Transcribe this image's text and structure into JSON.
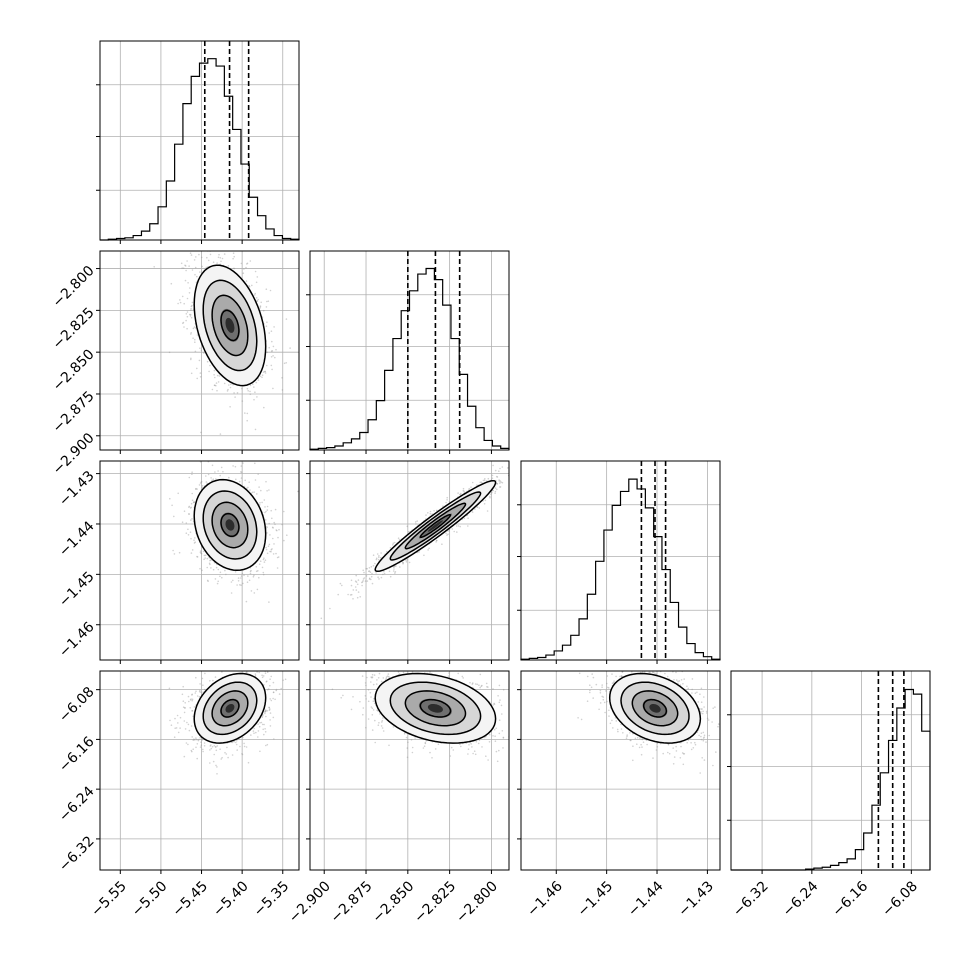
{
  "chart_data": {
    "type": "corner",
    "parameters": [
      {
        "id": "p1",
        "range": [
          -5.575,
          -5.33
        ],
        "ticks": [
          -5.55,
          -5.5,
          -5.45,
          -5.4,
          -5.35
        ],
        "tick_labels": [
          "−5.55",
          "−5.50",
          "−5.45",
          "−5.40",
          "−5.35"
        ],
        "quantiles": [
          -5.446,
          -5.4155,
          -5.392
        ]
      },
      {
        "id": "p2",
        "range": [
          -2.9085,
          -2.7895
        ],
        "ticks": [
          -2.9,
          -2.875,
          -2.85,
          -2.825,
          -2.8
        ],
        "tick_labels": [
          "−2.900",
          "−2.875",
          "−2.850",
          "−2.825",
          "−2.800"
        ],
        "quantiles": [
          -2.85,
          -2.8335,
          -2.819
        ]
      },
      {
        "id": "p3",
        "range": [
          -1.467,
          -1.4275
        ],
        "ticks": [
          -1.46,
          -1.45,
          -1.44,
          -1.43
        ],
        "tick_labels": [
          "−1.46",
          "−1.45",
          "−1.44",
          "−1.43"
        ],
        "quantiles": [
          -1.4431,
          -1.4404,
          -1.4383
        ]
      },
      {
        "id": "p4",
        "range": [
          -6.37,
          -6.05
        ],
        "ticks": [
          -6.32,
          -6.24,
          -6.16,
          -6.08
        ],
        "tick_labels": [
          "−6.32",
          "−6.24",
          "−6.16",
          "−6.08"
        ],
        "quantiles": [
          -6.133,
          -6.11,
          -6.092
        ]
      }
    ],
    "histograms": [
      {
        "param": "p1",
        "values": [
          0,
          1,
          2,
          3,
          6,
          12,
          22,
          45,
          80,
          130,
          185,
          222,
          240,
          246,
          236,
          195,
          150,
          103,
          58,
          33,
          15,
          6,
          2,
          1
        ],
        "ylim": [
          0,
          270
        ]
      },
      {
        "param": "p2",
        "values": [
          1,
          2,
          3,
          5,
          9,
          14,
          22,
          38,
          62,
          100,
          140,
          175,
          200,
          221,
          228,
          214,
          182,
          140,
          95,
          55,
          28,
          12,
          5,
          2
        ],
        "ylim": [
          0,
          250
        ]
      },
      {
        "param": "p3",
        "values": [
          1,
          2,
          3,
          6,
          11,
          18,
          30,
          50,
          80,
          120,
          158,
          188,
          205,
          220,
          208,
          185,
          150,
          110,
          70,
          40,
          20,
          9,
          4,
          1
        ],
        "ylim": [
          0,
          242
        ]
      },
      {
        "param": "p4",
        "values": [
          0,
          0,
          0,
          0,
          0,
          0,
          0,
          0,
          0,
          1,
          2,
          3,
          5,
          8,
          12,
          22,
          40,
          70,
          105,
          140,
          175,
          195,
          190,
          150
        ],
        "ylim": [
          0,
          215
        ]
      }
    ],
    "pairs": [
      {
        "x": "p1",
        "y": "p2",
        "center": [
          -5.415,
          -2.834
        ],
        "sd": [
          0.022,
          0.018
        ],
        "rho": -0.35
      },
      {
        "x": "p1",
        "y": "p3",
        "center": [
          -5.415,
          -1.4402
        ],
        "sd": [
          0.022,
          0.0045
        ],
        "rho": -0.2
      },
      {
        "x": "p2",
        "y": "p3",
        "center": [
          -2.8335,
          -1.4404
        ],
        "sd": [
          0.018,
          0.0045
        ],
        "rho": 0.96
      },
      {
        "x": "p1",
        "y": "p4",
        "center": [
          -5.415,
          -6.11
        ],
        "sd": [
          0.022,
          0.028
        ],
        "rho": 0.3
      },
      {
        "x": "p2",
        "y": "p4",
        "center": [
          -2.8335,
          -6.11
        ],
        "sd": [
          0.018,
          0.028
        ],
        "rho": -0.3
      },
      {
        "x": "p3",
        "y": "p4",
        "center": [
          -1.4404,
          -6.11
        ],
        "sd": [
          0.0045,
          0.028
        ],
        "rho": -0.3
      }
    ],
    "contour_levels_sigma": [
      0.5,
      1.0,
      1.5,
      2.0
    ],
    "grid": true,
    "colors": {
      "line": "#000000",
      "grid": "#b0b0b0",
      "scatter": "#9a9a9a"
    }
  }
}
